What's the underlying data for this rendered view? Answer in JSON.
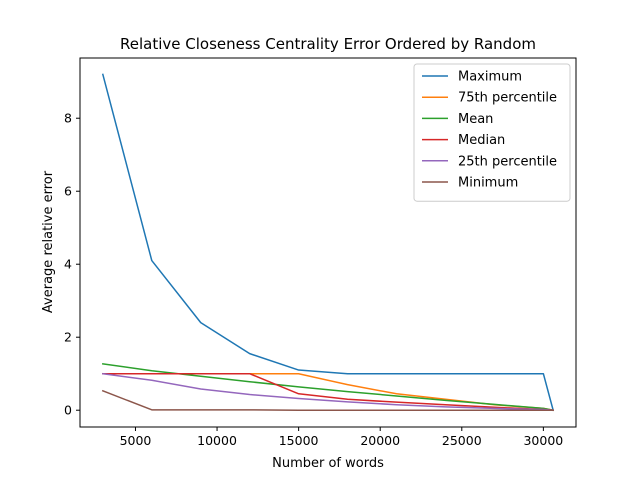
{
  "chart_data": {
    "type": "line",
    "title": "Relative Closeness Centrality Error Ordered by Random",
    "xlabel": "Number of words",
    "ylabel": "Average relative error",
    "xlim": [
      1600,
      32000
    ],
    "ylim": [
      -0.46,
      9.65
    ],
    "x_ticks": [
      5000,
      10000,
      15000,
      20000,
      25000,
      30000
    ],
    "y_ticks": [
      0,
      2,
      4,
      6,
      8
    ],
    "x_tick_labels": [
      "5000",
      "10000",
      "15000",
      "20000",
      "25000",
      "30000"
    ],
    "y_tick_labels": [
      "0",
      "2",
      "4",
      "6",
      "8"
    ],
    "grid": false,
    "legend_position": "top-right",
    "series": [
      {
        "name": "Maximum",
        "color": "#1f77b4",
        "x": [
          3000,
          6000,
          9000,
          12000,
          15000,
          18000,
          21000,
          24000,
          27000,
          30000,
          30600
        ],
        "y": [
          9.2,
          4.1,
          2.4,
          1.55,
          1.1,
          1.0,
          1.0,
          1.0,
          1.0,
          1.0,
          0.0
        ]
      },
      {
        "name": "75th percentile",
        "color": "#ff7f0e",
        "x": [
          3000,
          6000,
          9000,
          12000,
          15000,
          18000,
          21000,
          24000,
          27000,
          30000,
          30600
        ],
        "y": [
          1.0,
          1.0,
          1.0,
          1.0,
          1.0,
          0.7,
          0.45,
          0.3,
          0.15,
          0.05,
          0.0
        ]
      },
      {
        "name": "Mean",
        "color": "#2ca02c",
        "x": [
          3000,
          6000,
          9000,
          12000,
          15000,
          18000,
          21000,
          24000,
          27000,
          30000,
          30600
        ],
        "y": [
          1.27,
          1.08,
          0.93,
          0.78,
          0.64,
          0.51,
          0.39,
          0.27,
          0.16,
          0.05,
          0.0
        ]
      },
      {
        "name": "Median",
        "color": "#d62728",
        "x": [
          3000,
          6000,
          9000,
          12000,
          15000,
          18000,
          21000,
          24000,
          27000,
          30000,
          30600
        ],
        "y": [
          1.0,
          1.0,
          1.0,
          1.0,
          0.45,
          0.3,
          0.22,
          0.15,
          0.08,
          0.02,
          0.0
        ]
      },
      {
        "name": "25th percentile",
        "color": "#9467bd",
        "x": [
          3000,
          6000,
          9000,
          12000,
          15000,
          18000,
          21000,
          24000,
          27000,
          30000,
          30600
        ],
        "y": [
          1.0,
          0.82,
          0.58,
          0.43,
          0.32,
          0.23,
          0.15,
          0.09,
          0.05,
          0.02,
          0.0
        ]
      },
      {
        "name": "Minimum",
        "color": "#8c564b",
        "x": [
          3000,
          6000,
          9000,
          12000,
          15000,
          18000,
          21000,
          24000,
          27000,
          30000,
          30600
        ],
        "y": [
          0.53,
          0.01,
          0.01,
          0.01,
          0.0,
          0.0,
          0.0,
          0.0,
          0.0,
          0.0,
          0.0
        ]
      }
    ]
  }
}
